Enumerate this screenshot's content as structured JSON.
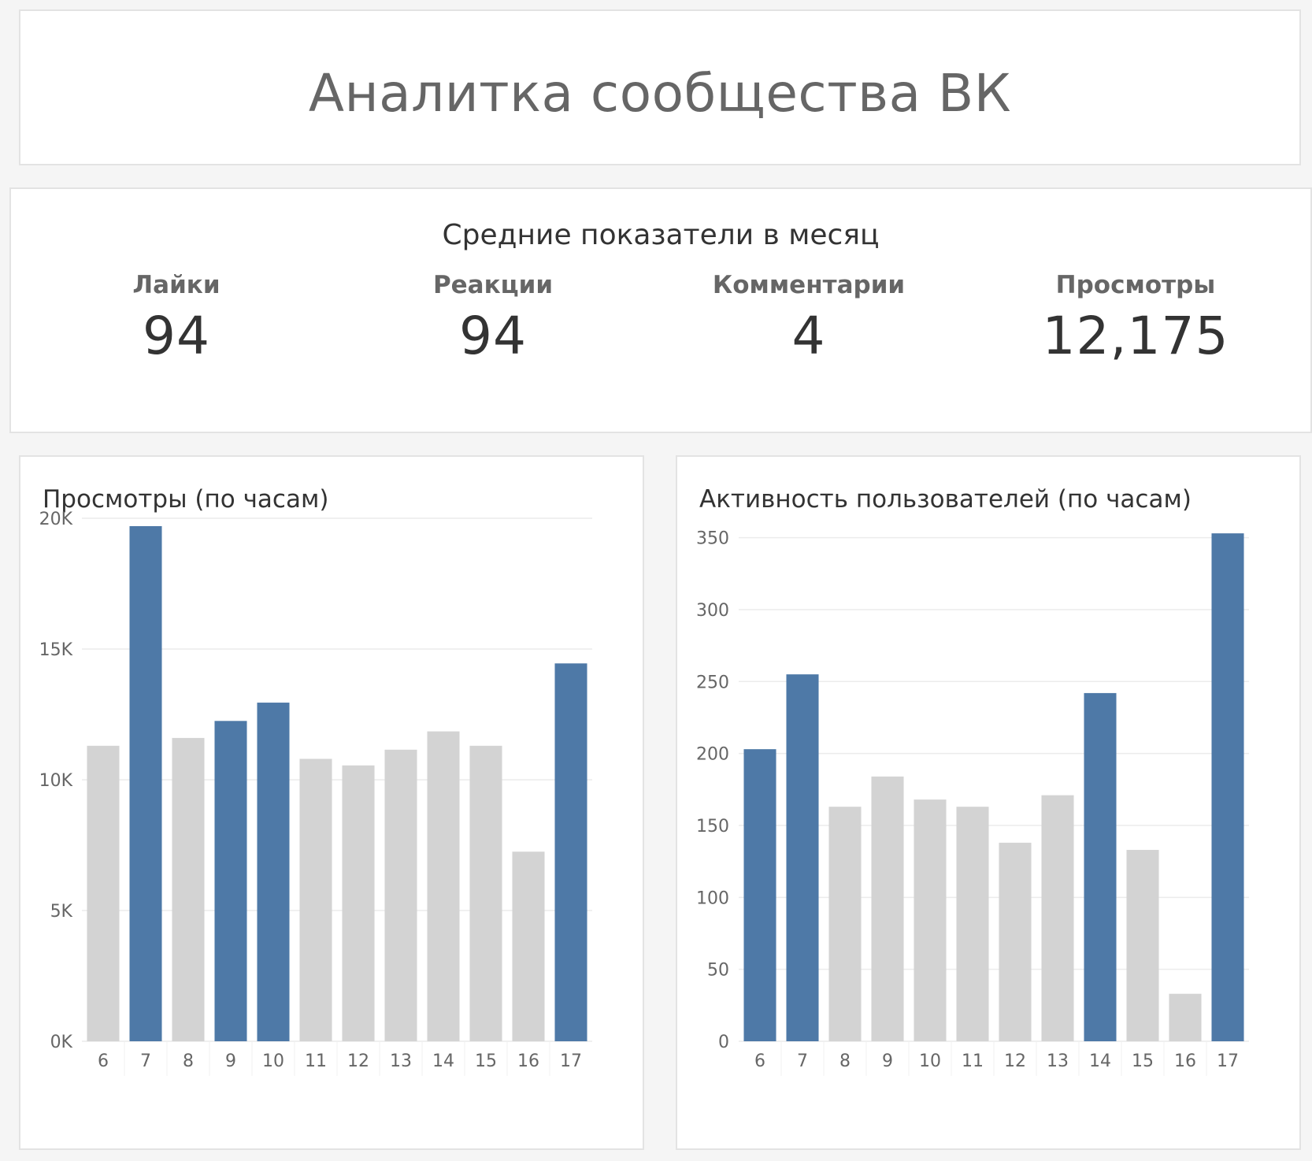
{
  "dashboard": {
    "title": "Аналитка сообщества ВК"
  },
  "kpis": {
    "header": "Средние показатели в месяц",
    "items": [
      {
        "label": "Лайки",
        "value": "94"
      },
      {
        "label": "Реакции",
        "value": "94"
      },
      {
        "label": "Комментарии",
        "value": "4"
      },
      {
        "label": "Просмотры",
        "value": "12,175"
      }
    ]
  },
  "colors": {
    "highlight": "#4e79a7",
    "muted": "#d3d3d3",
    "grid": "#ececec",
    "axis_text": "#666666"
  },
  "chart_data": [
    {
      "type": "bar",
      "title": "Просмотры (по часам)",
      "categories": [
        "6",
        "7",
        "8",
        "9",
        "10",
        "11",
        "12",
        "13",
        "14",
        "15",
        "16",
        "17"
      ],
      "values": [
        11300,
        19700,
        11600,
        12250,
        12950,
        10800,
        10550,
        11150,
        11850,
        11300,
        7250,
        14450
      ],
      "highlighted": [
        false,
        true,
        false,
        true,
        true,
        false,
        false,
        false,
        false,
        false,
        false,
        true
      ],
      "yticks": [
        0,
        5000,
        10000,
        15000,
        20000
      ],
      "ytick_labels": [
        "0K",
        "5K",
        "10K",
        "15K",
        "20K"
      ],
      "ylim": [
        0,
        20000
      ],
      "grid": true
    },
    {
      "type": "bar",
      "title": "Активность пользователей (по часам)",
      "categories": [
        "6",
        "7",
        "8",
        "9",
        "10",
        "11",
        "12",
        "13",
        "14",
        "15",
        "16",
        "17"
      ],
      "values": [
        203,
        255,
        163,
        184,
        168,
        163,
        138,
        171,
        242,
        133,
        33,
        353
      ],
      "highlighted": [
        true,
        true,
        false,
        false,
        false,
        false,
        false,
        false,
        true,
        false,
        false,
        true
      ],
      "yticks": [
        0,
        50,
        100,
        150,
        200,
        250,
        300,
        350
      ],
      "ytick_labels": [
        "0",
        "50",
        "100",
        "150",
        "200",
        "250",
        "300",
        "350"
      ],
      "ylim": [
        0,
        358
      ],
      "grid": true
    }
  ]
}
